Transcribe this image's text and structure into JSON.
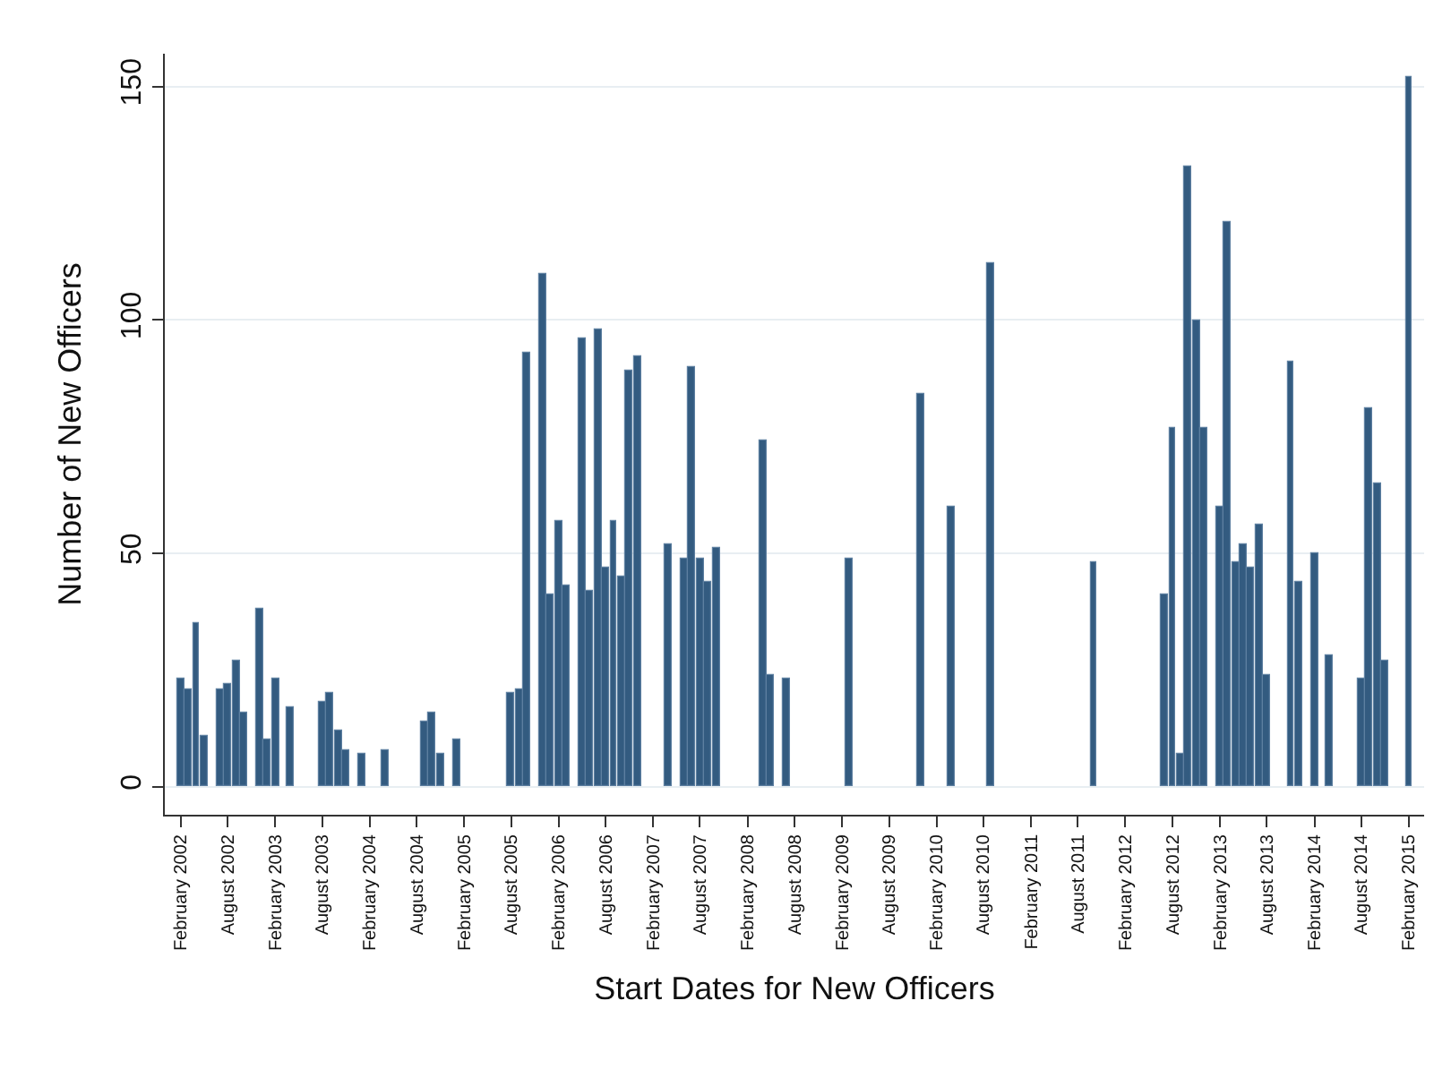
{
  "chart_data": {
    "type": "bar",
    "xlabel": "Start Dates for New Officers",
    "ylabel": "Number of New Officers",
    "x": [
      "2002-02",
      "2002-03",
      "2002-04",
      "2002-05",
      "2002-07",
      "2002-08",
      "2002-09",
      "2002-10",
      "2002-12",
      "2003-01",
      "2003-02",
      "2003-04",
      "2003-08",
      "2003-09",
      "2003-10",
      "2003-11",
      "2004-01",
      "2004-04",
      "2004-09",
      "2004-10",
      "2004-11",
      "2005-01",
      "2005-08",
      "2005-09",
      "2005-10",
      "2005-12",
      "2006-01",
      "2006-02",
      "2006-03",
      "2006-05",
      "2006-06",
      "2006-07",
      "2006-08",
      "2006-09",
      "2006-10",
      "2006-11",
      "2006-12",
      "2007-04",
      "2007-06",
      "2007-07",
      "2007-08",
      "2007-09",
      "2007-10",
      "2008-04",
      "2008-05",
      "2008-07",
      "2009-03",
      "2009-12",
      "2010-04",
      "2010-09",
      "2011-10",
      "2012-07",
      "2012-08",
      "2012-09",
      "2012-10",
      "2012-11",
      "2012-12",
      "2013-02",
      "2013-03",
      "2013-04",
      "2013-05",
      "2013-06",
      "2013-07",
      "2013-08",
      "2013-11",
      "2013-12",
      "2014-02",
      "2014-04",
      "2014-08",
      "2014-09",
      "2014-10",
      "2014-11",
      "2015-02"
    ],
    "series": [
      {
        "color": "#335b80",
        "values": [
          23,
          21,
          35,
          11,
          21,
          22,
          27,
          16,
          38,
          10,
          23,
          17,
          18,
          20,
          12,
          8,
          7,
          8,
          14,
          16,
          7,
          10,
          20,
          21,
          93,
          110,
          41,
          57,
          43,
          96,
          42,
          98,
          47,
          57,
          45,
          89,
          92,
          52,
          49,
          90,
          49,
          44,
          51,
          74,
          24,
          23,
          49,
          84,
          60,
          112,
          48,
          41,
          77,
          7,
          133,
          100,
          77,
          60,
          121,
          48,
          52,
          47,
          56,
          24,
          91,
          44,
          50,
          28,
          23,
          81,
          65,
          27,
          152
        ]
      }
    ],
    "xlim": [
      "2001-12",
      "2015-04"
    ],
    "xticks": [
      {
        "value": "2002-02",
        "label": "February 2002"
      },
      {
        "value": "2002-08",
        "label": "August 2002"
      },
      {
        "value": "2003-02",
        "label": "February 2003"
      },
      {
        "value": "2003-08",
        "label": "August 2003"
      },
      {
        "value": "2004-02",
        "label": "February 2004"
      },
      {
        "value": "2004-08",
        "label": "August 2004"
      },
      {
        "value": "2005-02",
        "label": "February 2005"
      },
      {
        "value": "2005-08",
        "label": "August 2005"
      },
      {
        "value": "2006-02",
        "label": "February 2006"
      },
      {
        "value": "2006-08",
        "label": "August 2006"
      },
      {
        "value": "2007-02",
        "label": "February 2007"
      },
      {
        "value": "2007-08",
        "label": "August 2007"
      },
      {
        "value": "2008-02",
        "label": "February 2008"
      },
      {
        "value": "2008-08",
        "label": "August 2008"
      },
      {
        "value": "2009-02",
        "label": "February 2009"
      },
      {
        "value": "2009-08",
        "label": "August 2009"
      },
      {
        "value": "2010-02",
        "label": "February 2010"
      },
      {
        "value": "2010-08",
        "label": "August 2010"
      },
      {
        "value": "2011-02",
        "label": "February 2011"
      },
      {
        "value": "2011-08",
        "label": "August 2011"
      },
      {
        "value": "2012-02",
        "label": "February 2012"
      },
      {
        "value": "2012-08",
        "label": "August 2012"
      },
      {
        "value": "2013-02",
        "label": "February 2013"
      },
      {
        "value": "2013-08",
        "label": "August 2013"
      },
      {
        "value": "2014-02",
        "label": "February 2014"
      },
      {
        "value": "2014-08",
        "label": "August 2014"
      },
      {
        "value": "2015-02",
        "label": "February 2015"
      }
    ],
    "ylim": [
      -6,
      157
    ],
    "yticks": [
      0,
      50,
      100,
      150
    ],
    "grid": "y"
  }
}
